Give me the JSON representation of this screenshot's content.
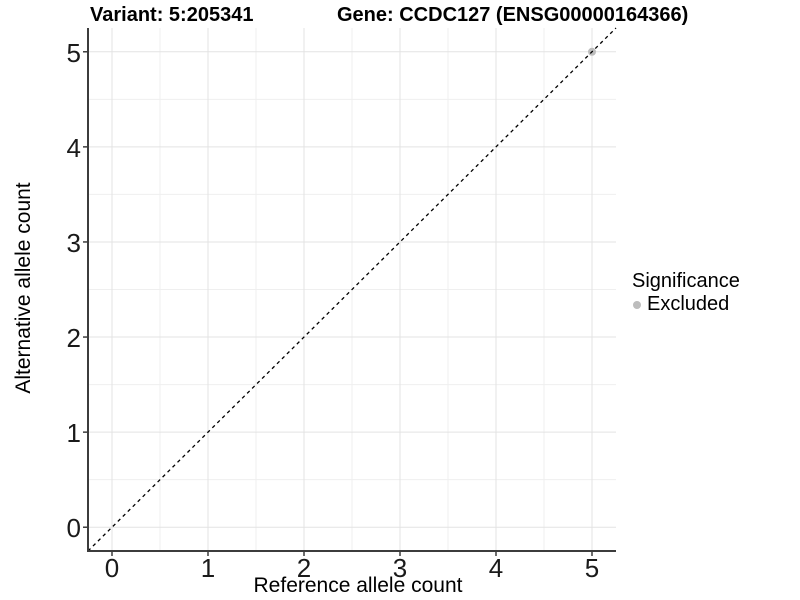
{
  "header": {
    "variant_title": "Variant: 5:205341",
    "gene_title": "Gene: CCDC127 (ENSG00000164366)"
  },
  "legend": {
    "title": "Significance",
    "items": [
      {
        "label": "Excluded",
        "color": "#bdbdbd"
      }
    ]
  },
  "chart_data": {
    "type": "scatter",
    "title": "Variant: 5:205341  |  Gene: CCDC127 (ENSG00000164366)",
    "xlabel": "Reference allele count",
    "ylabel": "Alternative allele count",
    "xlim": [
      -0.25,
      5.25
    ],
    "ylim": [
      -0.25,
      5.25
    ],
    "x_ticks": [
      0,
      1,
      2,
      3,
      4,
      5
    ],
    "y_ticks": [
      0,
      1,
      2,
      3,
      4,
      5
    ],
    "x_minor_breaks": [
      0.5,
      1.5,
      2.5,
      3.5,
      4.5
    ],
    "y_minor_breaks": [
      0.5,
      1.5,
      2.5,
      3.5,
      4.5
    ],
    "grid": "major-and-minor",
    "legend_position": "right",
    "identity_line": {
      "slope": 1,
      "intercept": 0,
      "style": "dashed",
      "color": "#000000"
    },
    "series": [
      {
        "name": "Excluded",
        "color": "#bdbdbd",
        "points": [
          {
            "x": 5,
            "y": 5
          }
        ]
      }
    ],
    "colors": {
      "grid_major": "#e3e3e3",
      "grid_minor": "#efefef",
      "axis_line": "#3c3c3c",
      "tick_mark": "#3c3c3c",
      "tick_text": "#1a1a1a",
      "background": "#ffffff"
    }
  }
}
